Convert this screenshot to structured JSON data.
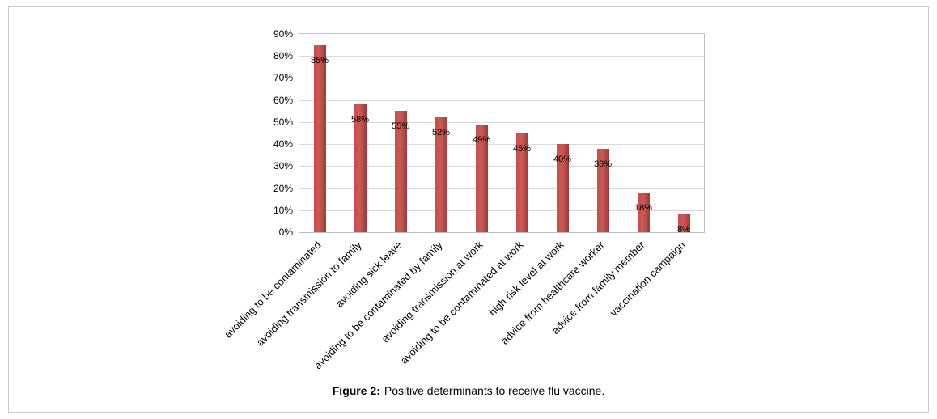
{
  "caption": {
    "label": "Figure 2:",
    "text": "Positive determinants to receive flu vaccine."
  },
  "chart_data": {
    "type": "bar",
    "title": "",
    "xlabel": "",
    "ylabel": "",
    "categories": [
      "avoiding to be contaminated",
      "avoiding transmission to family",
      "avoiding sick leave",
      "avoiding to be contaminated by family",
      "avoiding transmission at work",
      "avoiding to be contaminated at work",
      "high risk level at work",
      "advice from healthcare worker",
      "advice from family member",
      "vaccination campaign"
    ],
    "values": [
      85,
      58,
      55,
      52,
      49,
      45,
      40,
      38,
      18,
      8
    ],
    "value_labels": [
      "85%",
      "58%",
      "55%",
      "52%",
      "49%",
      "45%",
      "40%",
      "38%",
      "18%",
      "8%"
    ],
    "ylim": [
      0,
      90
    ],
    "ytick_step": 10,
    "ytick_labels": [
      "0%",
      "10%",
      "20%",
      "30%",
      "40%",
      "50%",
      "60%",
      "70%",
      "80%",
      "90%"
    ],
    "grid": true,
    "legend": "none",
    "bar_color": "#c0504d",
    "bar_color_dark": "#9c3a37",
    "bar_color_light": "#cb5955"
  }
}
